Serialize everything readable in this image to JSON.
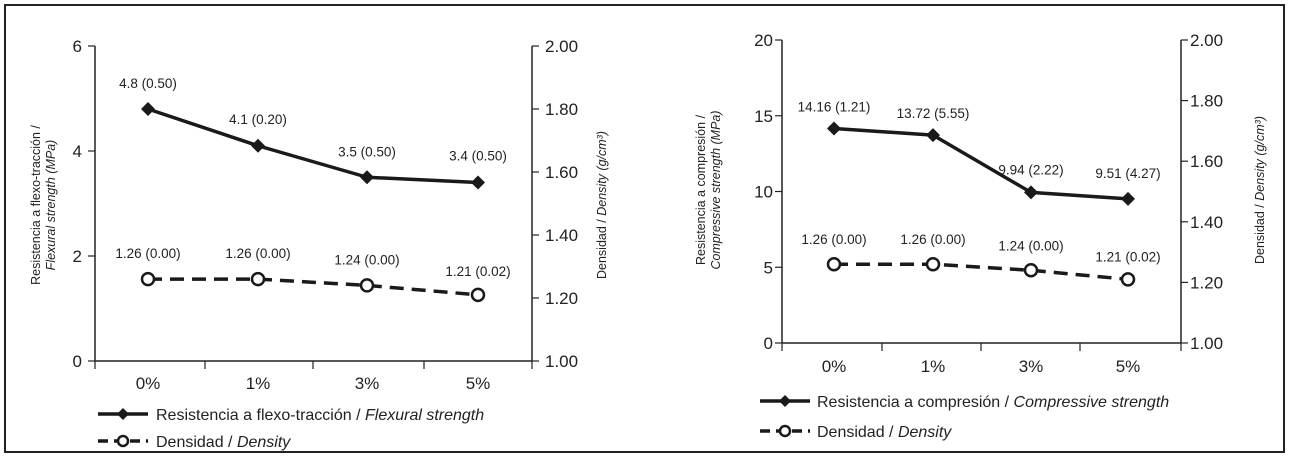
{
  "chart_data": [
    {
      "type": "line",
      "categories": [
        "0%",
        "1%",
        "3%",
        "5%"
      ],
      "ylim": [
        0,
        6
      ],
      "y_ticks": [
        "0",
        "2",
        "4",
        "6"
      ],
      "y2lim": [
        1.0,
        2.0
      ],
      "y2_ticks": [
        "1.00",
        "1.20",
        "1.40",
        "1.60",
        "1.80",
        "2.00"
      ],
      "ylabel": {
        "plain": "Resistencia a flexo-tracción /",
        "italic": "Flexural strength",
        "suffix": "(MPa)"
      },
      "y2label": {
        "plain": "Densidad /",
        "italic": "Density",
        "suffix": "(g/cm³)"
      },
      "series": [
        {
          "name": "Resistencia a flexo-tracción / Flexural strength",
          "legend": {
            "plain": "Resistencia a flexo-tracción /",
            "italic": "Flexural strength"
          },
          "axis": "left",
          "style": "solid",
          "marker": "diamond",
          "values": [
            4.8,
            4.1,
            3.5,
            3.4
          ],
          "labels": [
            "4.8 (0.50)",
            "4.1 (0.20)",
            "3.5 (0.50)",
            "3.4 (0.50)"
          ]
        },
        {
          "name": "Densidad / Density",
          "legend": {
            "plain": "Densidad /",
            "italic": "Density"
          },
          "axis": "right",
          "style": "dashed",
          "marker": "circle",
          "values": [
            1.26,
            1.26,
            1.24,
            1.21
          ],
          "labels": [
            "1.26 (0.00)",
            "1.26 (0.00)",
            "1.24 (0.00)",
            "1.21 (0.02)"
          ]
        }
      ],
      "grid": false,
      "legend_position": "bottom-left"
    },
    {
      "type": "line",
      "categories": [
        "0%",
        "1%",
        "3%",
        "5%"
      ],
      "ylim": [
        0,
        20
      ],
      "y_ticks": [
        "0",
        "5",
        "10",
        "15",
        "20"
      ],
      "y2lim": [
        1.0,
        2.0
      ],
      "y2_ticks": [
        "1.00",
        "1.20",
        "1.40",
        "1.60",
        "1.80",
        "2.00"
      ],
      "ylabel": {
        "plain": "Resistencia a compresión /",
        "italic": "Compressive strength",
        "suffix": "(MPa)"
      },
      "y2label": {
        "plain": "Densidad /",
        "italic": "Density",
        "suffix": "(g/cm³)"
      },
      "series": [
        {
          "name": "Resistencia a compresión / Compressive strength",
          "legend": {
            "plain": "Resistencia a compresión /",
            "italic": "Compressive strength"
          },
          "axis": "left",
          "style": "solid",
          "marker": "diamond",
          "values": [
            14.16,
            13.72,
            9.94,
            9.51
          ],
          "labels": [
            "14.16 (1.21)",
            "13.72 (5.55)",
            "9.94 (2.22)",
            "9.51 (4.27)"
          ]
        },
        {
          "name": "Densidad / Density",
          "legend": {
            "plain": "Densidad /",
            "italic": "Density"
          },
          "axis": "right",
          "style": "dashed",
          "marker": "circle",
          "values": [
            1.26,
            1.26,
            1.24,
            1.21
          ],
          "labels": [
            "1.26 (0.00)",
            "1.26 (0.00)",
            "1.24 (0.00)",
            "1.21 (0.02)"
          ]
        }
      ],
      "grid": false,
      "legend_position": "bottom-left"
    }
  ]
}
